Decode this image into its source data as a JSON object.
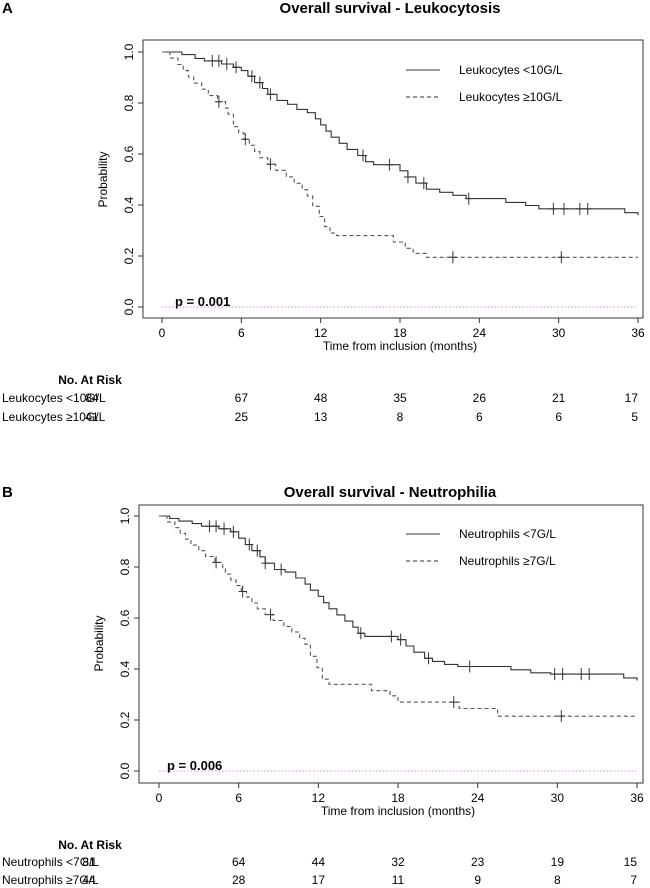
{
  "chart_data": [
    {
      "type": "line",
      "panel_label": "A",
      "title": "Overall survival - Leukocytosis",
      "xlabel": "Time from inclusion (months)",
      "ylabel": "Probability",
      "xlim": [
        0,
        36
      ],
      "ylim": [
        0,
        1
      ],
      "xticks": [
        "0",
        "6",
        "12",
        "18",
        "24",
        "30",
        "36"
      ],
      "yticks": [
        "0.0",
        "0.2",
        "0.4",
        "0.6",
        "0.8",
        "1.0"
      ],
      "p_value": "p = 0.001",
      "legend_position": "top-right",
      "series": [
        {
          "name": "Leukocytes <10G/L",
          "style": "solid",
          "steps": [
            [
              0,
              1.0
            ],
            [
              0.8,
              1.0
            ],
            [
              1.5,
              0.99
            ],
            [
              2.5,
              0.975
            ],
            [
              3.2,
              0.965
            ],
            [
              4.5,
              0.953
            ],
            [
              5.4,
              0.94
            ],
            [
              6,
              0.927
            ],
            [
              6.5,
              0.905
            ],
            [
              7,
              0.88
            ],
            [
              7.6,
              0.857
            ],
            [
              8,
              0.834
            ],
            [
              8.7,
              0.81
            ],
            [
              9.5,
              0.795
            ],
            [
              10.2,
              0.775
            ],
            [
              11,
              0.762
            ],
            [
              11.6,
              0.738
            ],
            [
              12,
              0.714
            ],
            [
              12.4,
              0.69
            ],
            [
              12.8,
              0.666
            ],
            [
              13.4,
              0.642
            ],
            [
              14,
              0.618
            ],
            [
              14.8,
              0.594
            ],
            [
              15.4,
              0.57
            ],
            [
              16,
              0.558
            ],
            [
              17.5,
              0.558
            ],
            [
              18,
              0.534
            ],
            [
              18.6,
              0.51
            ],
            [
              19.2,
              0.486
            ],
            [
              20,
              0.462
            ],
            [
              21,
              0.45
            ],
            [
              22,
              0.438
            ],
            [
              23,
              0.425
            ],
            [
              25.5,
              0.425
            ],
            [
              26,
              0.41
            ],
            [
              27.5,
              0.398
            ],
            [
              28.5,
              0.385
            ],
            [
              34.5,
              0.385
            ],
            [
              35,
              0.37
            ],
            [
              36,
              0.36
            ]
          ],
          "censor": [
            3.8,
            4.3,
            4.9,
            5.6,
            6.8,
            7.4,
            8.2,
            15.2,
            17.2,
            18.6,
            19.8,
            23.2,
            29.6,
            30.4,
            31.6,
            32.2
          ]
        },
        {
          "name": "Leukocytes ≥10G/L",
          "style": "dashed",
          "steps": [
            [
              0,
              1.0
            ],
            [
              0.6,
              0.976
            ],
            [
              1.2,
              0.951
            ],
            [
              1.6,
              0.927
            ],
            [
              2,
              0.902
            ],
            [
              2.4,
              0.878
            ],
            [
              3,
              0.854
            ],
            [
              3.5,
              0.829
            ],
            [
              4.2,
              0.805
            ],
            [
              4.8,
              0.78
            ],
            [
              5,
              0.756
            ],
            [
              5.4,
              0.707
            ],
            [
              5.8,
              0.683
            ],
            [
              6.2,
              0.658
            ],
            [
              6.6,
              0.634
            ],
            [
              7,
              0.61
            ],
            [
              7.4,
              0.585
            ],
            [
              8,
              0.56
            ],
            [
              8.6,
              0.536
            ],
            [
              9.4,
              0.51
            ],
            [
              10,
              0.485
            ],
            [
              10.6,
              0.46
            ],
            [
              11,
              0.435
            ],
            [
              11.4,
              0.395
            ],
            [
              11.9,
              0.355
            ],
            [
              12.3,
              0.315
            ],
            [
              12.7,
              0.29
            ],
            [
              13.2,
              0.28
            ],
            [
              17,
              0.28
            ],
            [
              17.5,
              0.255
            ],
            [
              18.4,
              0.23
            ],
            [
              19,
              0.21
            ],
            [
              20,
              0.195
            ],
            [
              36,
              0.195
            ]
          ],
          "censor": [
            4.3,
            6.3,
            8.2,
            22.0,
            30.2
          ]
        }
      ],
      "risk_table": {
        "header": "No. At Risk",
        "rows": [
          {
            "label": "Leukocytes <10G/L",
            "values": [
              "84",
              "67",
              "48",
              "35",
              "26",
              "21",
              "17"
            ]
          },
          {
            "label": "Leukocytes ≥10G/L",
            "values": [
              "41",
              "25",
              "13",
              "8",
              "6",
              "6",
              "5"
            ]
          }
        ]
      }
    },
    {
      "type": "line",
      "panel_label": "B",
      "title": "Overall survival - Neutrophilia",
      "xlabel": "Time from inclusion (months)",
      "ylabel": "Probability",
      "xlim": [
        0,
        36
      ],
      "ylim": [
        0,
        1
      ],
      "xticks": [
        "0",
        "6",
        "12",
        "18",
        "24",
        "30",
        "36"
      ],
      "yticks": [
        "0.0",
        "0.2",
        "0.4",
        "0.6",
        "0.8",
        "1.0"
      ],
      "p_value": "p = 0.006",
      "legend_position": "top-right",
      "series": [
        {
          "name": "Neutrophils <7G/L",
          "style": "solid",
          "steps": [
            [
              0,
              1.0
            ],
            [
              0.8,
              0.99
            ],
            [
              1.5,
              0.98
            ],
            [
              2.5,
              0.97
            ],
            [
              3.2,
              0.96
            ],
            [
              4.5,
              0.95
            ],
            [
              5.4,
              0.938
            ],
            [
              6,
              0.913
            ],
            [
              6.5,
              0.888
            ],
            [
              7,
              0.864
            ],
            [
              7.6,
              0.84
            ],
            [
              8,
              0.815
            ],
            [
              8.7,
              0.79
            ],
            [
              9.5,
              0.78
            ],
            [
              10.3,
              0.757
            ],
            [
              11,
              0.733
            ],
            [
              11.4,
              0.709
            ],
            [
              12,
              0.685
            ],
            [
              12.4,
              0.66
            ],
            [
              12.8,
              0.636
            ],
            [
              13.4,
              0.612
            ],
            [
              14,
              0.588
            ],
            [
              14.6,
              0.564
            ],
            [
              15,
              0.54
            ],
            [
              15.5,
              0.528
            ],
            [
              17.4,
              0.528
            ],
            [
              18,
              0.515
            ],
            [
              18.6,
              0.49
            ],
            [
              19.2,
              0.466
            ],
            [
              20,
              0.442
            ],
            [
              20.6,
              0.43
            ],
            [
              21.5,
              0.418
            ],
            [
              22.5,
              0.41
            ],
            [
              26,
              0.41
            ],
            [
              26.5,
              0.397
            ],
            [
              28,
              0.385
            ],
            [
              29.5,
              0.38
            ],
            [
              34.5,
              0.38
            ],
            [
              35,
              0.365
            ],
            [
              36,
              0.355
            ]
          ],
          "censor": [
            3.8,
            4.3,
            4.9,
            5.6,
            6.8,
            7.4,
            8.0,
            9.2,
            15.2,
            17.5,
            18.2,
            20.3,
            23.4,
            29.8,
            30.4,
            31.8,
            32.4
          ]
        },
        {
          "name": "Neutrophils ≥7G/L",
          "style": "dashed",
          "steps": [
            [
              0,
              1.0
            ],
            [
              0.6,
              0.977
            ],
            [
              1.2,
              0.954
            ],
            [
              1.6,
              0.932
            ],
            [
              2,
              0.909
            ],
            [
              2.4,
              0.886
            ],
            [
              3,
              0.864
            ],
            [
              3.5,
              0.841
            ],
            [
              4.2,
              0.818
            ],
            [
              4.8,
              0.795
            ],
            [
              5,
              0.772
            ],
            [
              5.4,
              0.75
            ],
            [
              5.8,
              0.727
            ],
            [
              6.2,
              0.704
            ],
            [
              6.6,
              0.682
            ],
            [
              7,
              0.659
            ],
            [
              7.4,
              0.636
            ],
            [
              8,
              0.613
            ],
            [
              8.6,
              0.59
            ],
            [
              9.4,
              0.567
            ],
            [
              10,
              0.545
            ],
            [
              10.6,
              0.52
            ],
            [
              11,
              0.497
            ],
            [
              11.4,
              0.45
            ],
            [
              11.9,
              0.405
            ],
            [
              12.3,
              0.36
            ],
            [
              12.8,
              0.34
            ],
            [
              15.2,
              0.34
            ],
            [
              16,
              0.315
            ],
            [
              17.4,
              0.295
            ],
            [
              18,
              0.27
            ],
            [
              22,
              0.27
            ],
            [
              22.6,
              0.245
            ],
            [
              24.8,
              0.245
            ],
            [
              25.5,
              0.215
            ],
            [
              36,
              0.215
            ]
          ],
          "censor": [
            4.3,
            6.3,
            8.4,
            22.2,
            30.3
          ]
        }
      ],
      "risk_table": {
        "header": "No. At Risk",
        "rows": [
          {
            "label": "Neutrophils <7G/L",
            "values": [
              "81",
              "64",
              "44",
              "32",
              "23",
              "19",
              "15"
            ]
          },
          {
            "label": "Neutrophils ≥7G/L",
            "values": [
              "44",
              "28",
              "17",
              "11",
              "9",
              "8",
              "7"
            ]
          }
        ]
      }
    }
  ]
}
